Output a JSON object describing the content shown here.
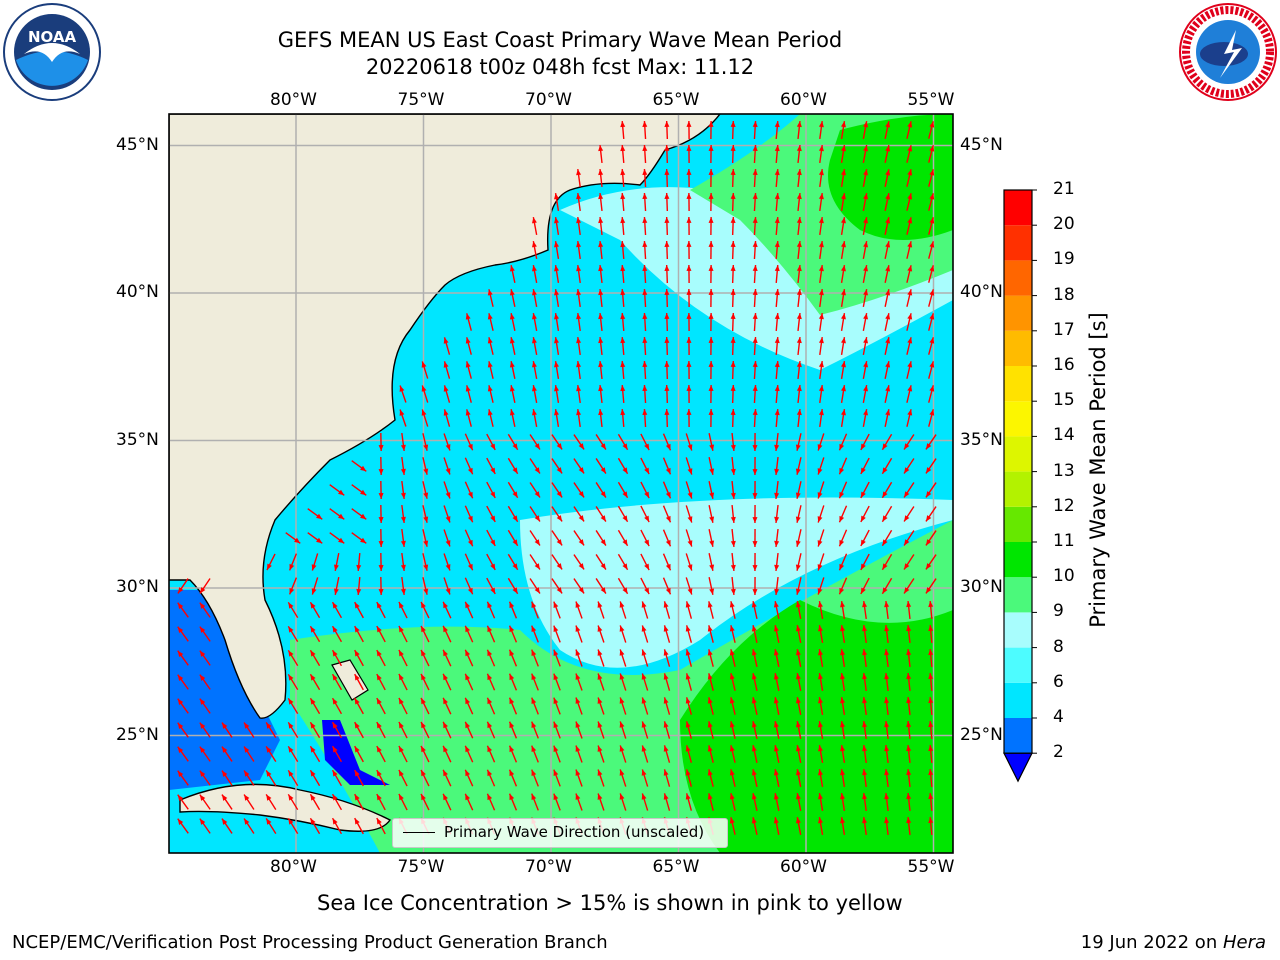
{
  "header": {
    "title_line1": "GEFS MEAN US East Coast Primary Wave Mean Period",
    "title_line2": "20220618 t00z 048h fcst   Max: 11.12"
  },
  "logos": {
    "left": "noaa-logo",
    "left_text": "NOAA",
    "right": "national-weather-service-logo"
  },
  "map": {
    "lon_ticks": [
      "80°W",
      "75°W",
      "70°W",
      "65°W",
      "60°W",
      "55°W"
    ],
    "lat_ticks": [
      "45°N",
      "40°N",
      "35°N",
      "30°N",
      "25°N"
    ],
    "land_color": "#efecdb",
    "grid_color": "#b0b0b0",
    "arrow_color": "#ff0000",
    "legend": "Primary Wave Direction (unscaled)"
  },
  "colorbar": {
    "title": "Primary Wave Mean Period [s]",
    "levels": [
      "2",
      "4",
      "6",
      "8",
      "9",
      "10",
      "11",
      "12",
      "13",
      "14",
      "15",
      "16",
      "17",
      "18",
      "19",
      "20",
      "21"
    ],
    "colors": [
      "#0000ff",
      "#0073ff",
      "#00e6ff",
      "#4dfcff",
      "#a8fdfd",
      "#4bf97b",
      "#00e600",
      "#66e800",
      "#b3f200",
      "#ddf600",
      "#fcf600",
      "#ffe200",
      "#ffbb00",
      "#ff9400",
      "#ff6600",
      "#ff3000",
      "#ff0000"
    ]
  },
  "footer": {
    "caption": "Sea Ice Concentration > 15% is shown in pink to yellow",
    "credit": "NCEP/EMC/Verification Post Processing Product Generation Branch",
    "date": "19 Jun 2022 on ",
    "machine": "Hera"
  }
}
